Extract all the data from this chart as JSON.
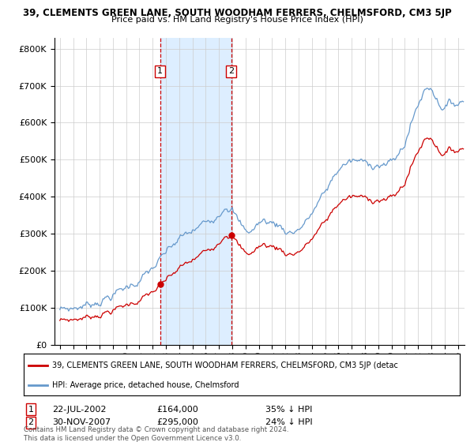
{
  "title1": "39, CLEMENTS GREEN LANE, SOUTH WOODHAM FERRERS, CHELMSFORD, CM3 5JP",
  "title2": "Price paid vs. HM Land Registry's House Price Index (HPI)",
  "legend_line1": "39, CLEMENTS GREEN LANE, SOUTH WOODHAM FERRERS, CHELMSFORD, CM3 5JP (detac",
  "legend_line2": "HPI: Average price, detached house, Chelmsford",
  "annotation1_date": "22-JUL-2002",
  "annotation1_price": "£164,000",
  "annotation1_note": "35% ↓ HPI",
  "annotation2_date": "30-NOV-2007",
  "annotation2_price": "£295,000",
  "annotation2_note": "24% ↓ HPI",
  "footer": "Contains HM Land Registry data © Crown copyright and database right 2024.\nThis data is licensed under the Open Government Licence v3.0.",
  "red_color": "#cc0000",
  "blue_color": "#6699cc",
  "shade_color": "#ddeeff",
  "background_color": "#ffffff",
  "marker1_x": 2002.55,
  "marker1_y": 164000,
  "marker2_x": 2007.92,
  "marker2_y": 295000,
  "vline1_x": 2002.55,
  "vline2_x": 2007.92,
  "ylim": [
    0,
    830000
  ],
  "xlim_start": 1994.6,
  "xlim_end": 2025.5
}
